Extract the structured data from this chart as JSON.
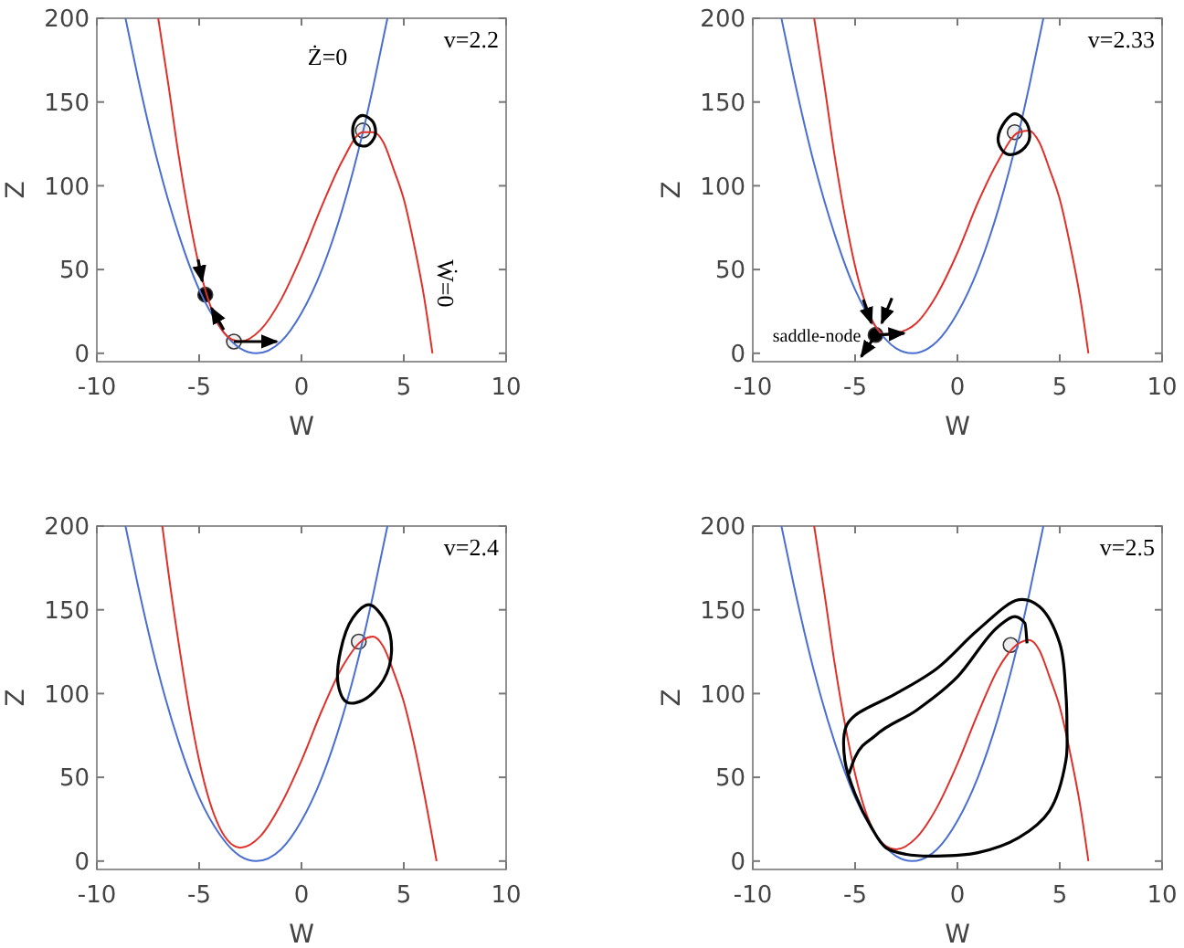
{
  "chart_data": [
    {
      "type": "line",
      "title": "v=2.2",
      "xlabel": "W",
      "ylabel": "Z",
      "xlim": [
        -10,
        10
      ],
      "ylim": [
        -5,
        200
      ],
      "xticks": [
        -10,
        -5,
        0,
        5,
        10
      ],
      "yticks": [
        0,
        50,
        100,
        150,
        200
      ],
      "grid": false,
      "series": [
        {
          "color": "#4a6fd0",
          "x": [
            -8.6,
            -8,
            -7,
            -6,
            -5,
            -4,
            -3,
            -2.2,
            -1,
            0,
            1,
            2,
            3,
            3.5,
            4.2
          ],
          "values": [
            200,
            165,
            113,
            71,
            38,
            16,
            3,
            0,
            7,
            24,
            50,
            86,
            132,
            159,
            200
          ]
        },
        {
          "color": "#e0302a",
          "x": [
            -7,
            -6.5,
            -6,
            -5.5,
            -5,
            -4.5,
            -4,
            -3.5,
            -3,
            -2,
            -1,
            0,
            1,
            2,
            3,
            3.5,
            4,
            4.5,
            5,
            5.5,
            6,
            6.4
          ],
          "values": [
            200,
            160,
            118,
            82,
            52,
            30,
            16,
            9,
            7,
            14,
            32,
            58,
            88,
            115,
            132,
            132,
            126,
            110,
            92,
            65,
            33,
            0
          ]
        },
        {
          "color": "#000000",
          "x": [
            -3.3,
            -1.2
          ],
          "values": [
            7,
            7
          ]
        },
        {
          "color": "#000000",
          "x": [
            -3.8,
            -4.4
          ],
          "values": [
            14,
            27
          ]
        },
        {
          "color": "#000000",
          "x": [
            -5.05,
            -4.85
          ],
          "values": [
            56,
            43
          ]
        },
        {
          "type": "scatter",
          "marker": "circle",
          "x": [
            -3.3,
            -4.7,
            3
          ],
          "values": [
            7,
            35,
            133
          ],
          "colors": [
            "#eeeeee",
            "#000000",
            "#eeeeee"
          ]
        }
      ],
      "annotations": [
        {
          "text": "Ż=0",
          "x": 3.5,
          "y": 159
        },
        {
          "text": "Ẇ=0",
          "x": 6,
          "y": 33
        }
      ]
    },
    {
      "type": "line",
      "title": "v=2.33",
      "xlabel": "W",
      "ylabel": "Z",
      "xlim": [
        -10,
        10
      ],
      "ylim": [
        -5,
        200
      ],
      "xticks": [
        -10,
        -5,
        0,
        5,
        10
      ],
      "yticks": [
        0,
        50,
        100,
        150,
        200
      ],
      "grid": false,
      "series": [
        {
          "color": "#4a6fd0",
          "x": [
            -8.6,
            -8,
            -7,
            -6,
            -5,
            -4,
            -3,
            -2.2,
            -1,
            0,
            1,
            2,
            3,
            3.5,
            4.2
          ],
          "values": [
            200,
            165,
            113,
            71,
            38,
            16,
            3,
            0,
            7,
            24,
            50,
            86,
            132,
            159,
            200
          ]
        },
        {
          "color": "#e0302a",
          "x": [
            -7,
            -6.5,
            -6,
            -5.5,
            -5,
            -4.5,
            -4,
            -3.5,
            -3,
            -2,
            -1,
            0,
            1,
            2,
            3,
            3.5,
            4,
            4.5,
            5,
            5.5,
            6,
            6.4
          ],
          "values": [
            200,
            160,
            118,
            82,
            52,
            30,
            16,
            11,
            12,
            18,
            35,
            60,
            90,
            115,
            132,
            133,
            126,
            110,
            92,
            65,
            33,
            0
          ]
        },
        {
          "color": "#000000",
          "x": [
            -4.6,
            -4.2
          ],
          "values": [
            32,
            18
          ]
        },
        {
          "color": "#000000",
          "x": [
            -3.2,
            -3.7
          ],
          "values": [
            33,
            18
          ]
        },
        {
          "color": "#000000",
          "x": [
            -3.8,
            -2.6
          ],
          "values": [
            11,
            12
          ]
        },
        {
          "color": "#000000",
          "x": [
            -4.1,
            -4.7
          ],
          "values": [
            9,
            -2
          ]
        },
        {
          "type": "scatter",
          "marker": "circle",
          "x": [
            -4,
            2.8
          ],
          "values": [
            11,
            132
          ],
          "colors": [
            "#000000",
            "#eeeeee"
          ]
        }
      ],
      "annotations": [
        {
          "text": "saddle-node",
          "x": -4,
          "y": 11
        }
      ]
    },
    {
      "type": "line",
      "title": "v=2.4",
      "xlabel": "W",
      "ylabel": "Z",
      "xlim": [
        -10,
        10
      ],
      "ylim": [
        -5,
        200
      ],
      "xticks": [
        -10,
        -5,
        0,
        5,
        10
      ],
      "yticks": [
        0,
        50,
        100,
        150,
        200
      ],
      "grid": false,
      "series": [
        {
          "color": "#4a6fd0",
          "x": [
            -8.6,
            -8,
            -7,
            -6,
            -5,
            -4,
            -3,
            -2.2,
            -1,
            0,
            1,
            2,
            3,
            3.5,
            4.2
          ],
          "values": [
            200,
            165,
            113,
            71,
            38,
            16,
            3,
            0,
            7,
            24,
            50,
            86,
            132,
            159,
            200
          ]
        },
        {
          "color": "#e0302a",
          "x": [
            -6.8,
            -6.5,
            -6,
            -5.5,
            -5,
            -4.5,
            -4,
            -3.5,
            -3,
            -2,
            -1,
            0,
            1,
            2,
            3,
            3.5,
            4,
            4.5,
            5,
            5.5,
            6,
            6.6
          ],
          "values": [
            200,
            172,
            130,
            92,
            60,
            36,
            20,
            11,
            8,
            15,
            34,
            60,
            90,
            116,
            132,
            134,
            128,
            113,
            95,
            70,
            40,
            0
          ]
        },
        {
          "type": "scatter",
          "marker": "circle",
          "x": [
            2.8
          ],
          "values": [
            131
          ],
          "colors": [
            "#eeeeee"
          ]
        }
      ]
    },
    {
      "type": "line",
      "title": "v=2.5",
      "xlabel": "W",
      "ylabel": "Z",
      "xlim": [
        -10,
        10
      ],
      "ylim": [
        -5,
        200
      ],
      "xticks": [
        -10,
        -5,
        0,
        5,
        10
      ],
      "yticks": [
        0,
        50,
        100,
        150,
        200
      ],
      "grid": false,
      "series": [
        {
          "color": "#4a6fd0",
          "x": [
            -8.6,
            -8,
            -7,
            -6,
            -5,
            -4,
            -3,
            -2.2,
            -1,
            0,
            1,
            2,
            3,
            3.5,
            4.2
          ],
          "values": [
            200,
            165,
            113,
            71,
            38,
            16,
            3,
            0,
            7,
            24,
            50,
            86,
            132,
            159,
            200
          ]
        },
        {
          "color": "#e0302a",
          "x": [
            -7,
            -6.5,
            -6,
            -5.5,
            -5,
            -4.5,
            -4,
            -3.5,
            -3,
            -2,
            -1,
            0,
            1,
            2,
            3,
            3.5,
            4,
            4.5,
            5,
            5.5,
            6,
            6.4
          ],
          "values": [
            200,
            160,
            118,
            82,
            52,
            30,
            16,
            9,
            7,
            14,
            32,
            58,
            88,
            115,
            130,
            132,
            126,
            110,
            92,
            65,
            33,
            0
          ]
        },
        {
          "color": "#000000",
          "x": [
            -5.3,
            -5,
            -4,
            -2,
            0,
            2,
            2.8,
            3.3,
            3.4
          ],
          "values": [
            52,
            62,
            75,
            90,
            110,
            140,
            146,
            142,
            130
          ]
        },
        {
          "type": "scatter",
          "marker": "circle",
          "x": [
            2.6
          ],
          "values": [
            129
          ],
          "colors": [
            "#eeeeee"
          ]
        }
      ]
    }
  ]
}
